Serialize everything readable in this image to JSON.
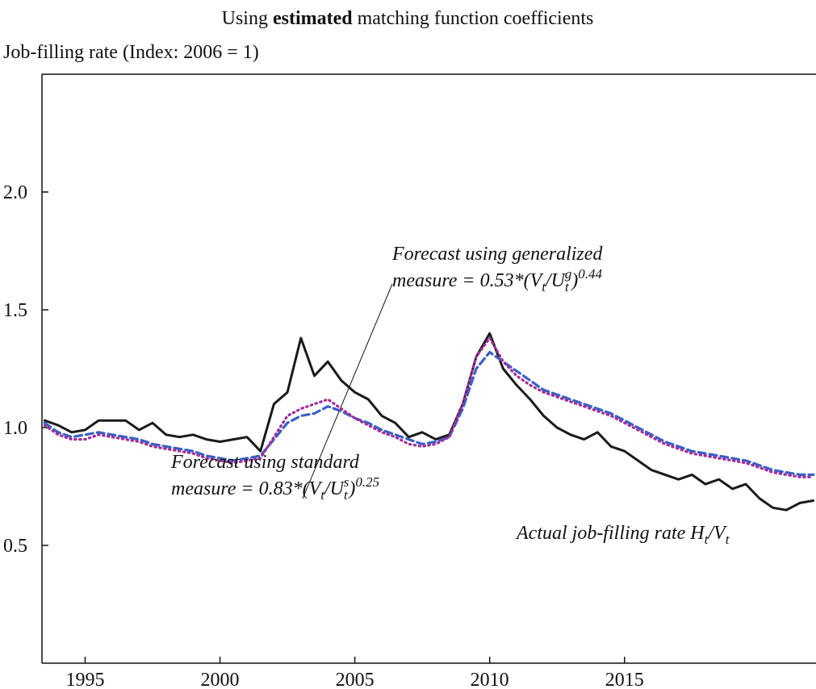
{
  "chart_data": {
    "type": "line",
    "title": [
      {
        "text": "Using "
      },
      {
        "text": "estimated",
        "bold": true
      },
      {
        "text": " matching function coefficients"
      }
    ],
    "y_label": "Job-filling rate (Index: 2006 = 1)",
    "x": [
      1993.5,
      1994,
      1994.5,
      1995,
      1995.5,
      1996,
      1996.5,
      1997,
      1997.5,
      1998,
      1998.5,
      1999,
      1999.5,
      2000,
      2000.5,
      2001,
      2001.5,
      2002,
      2002.5,
      2003,
      2003.5,
      2004,
      2004.5,
      2005,
      2005.5,
      2006,
      2006.5,
      2007,
      2007.5,
      2008,
      2008.5,
      2009,
      2009.5,
      2010,
      2010.5,
      2011,
      2011.5,
      2012,
      2012.5,
      2013,
      2013.5,
      2014,
      2014.5,
      2015,
      2015.5,
      2016,
      2016.5,
      2017,
      2017.5,
      2018,
      2018.5,
      2019,
      2019.5,
      2020,
      2020.5,
      2021,
      2021.5,
      2022
    ],
    "series": [
      {
        "color": "#1a1a1a",
        "dash": "solid",
        "values": [
          1.03,
          1.01,
          0.98,
          0.99,
          1.03,
          1.03,
          1.03,
          0.99,
          1.02,
          0.97,
          0.96,
          0.97,
          0.95,
          0.94,
          0.95,
          0.96,
          0.9,
          1.1,
          1.15,
          1.38,
          1.22,
          1.28,
          1.2,
          1.15,
          1.12,
          1.05,
          1.02,
          0.96,
          0.98,
          0.95,
          0.97,
          1.1,
          1.3,
          1.4,
          1.25,
          1.18,
          1.12,
          1.05,
          1.0,
          0.97,
          0.95,
          0.98,
          0.92,
          0.9,
          0.86,
          0.82,
          0.8,
          0.78,
          0.8,
          0.76,
          0.78,
          0.74,
          0.76,
          0.7,
          0.66,
          0.65,
          0.68,
          0.69
        ]
      },
      {
        "color": "#3b5fc4",
        "dash": "dashed",
        "values": [
          1.02,
          0.98,
          0.96,
          0.97,
          0.98,
          0.97,
          0.96,
          0.95,
          0.93,
          0.92,
          0.91,
          0.9,
          0.88,
          0.87,
          0.86,
          0.87,
          0.88,
          0.95,
          1.02,
          1.05,
          1.06,
          1.09,
          1.07,
          1.04,
          1.02,
          0.99,
          0.97,
          0.95,
          0.93,
          0.94,
          0.96,
          1.08,
          1.25,
          1.32,
          1.28,
          1.24,
          1.2,
          1.16,
          1.14,
          1.12,
          1.1,
          1.08,
          1.06,
          1.03,
          1.0,
          0.97,
          0.94,
          0.92,
          0.9,
          0.89,
          0.88,
          0.87,
          0.86,
          0.84,
          0.82,
          0.81,
          0.8,
          0.8
        ]
      },
      {
        "color": "#a0309a",
        "dash": "dotted",
        "values": [
          1.01,
          0.97,
          0.95,
          0.95,
          0.97,
          0.96,
          0.95,
          0.94,
          0.92,
          0.91,
          0.9,
          0.89,
          0.87,
          0.86,
          0.85,
          0.86,
          0.87,
          0.96,
          1.05,
          1.08,
          1.1,
          1.12,
          1.08,
          1.04,
          1.01,
          0.98,
          0.96,
          0.93,
          0.92,
          0.93,
          0.96,
          1.1,
          1.3,
          1.38,
          1.28,
          1.22,
          1.18,
          1.15,
          1.13,
          1.11,
          1.09,
          1.07,
          1.05,
          1.02,
          0.99,
          0.96,
          0.93,
          0.91,
          0.89,
          0.88,
          0.87,
          0.86,
          0.85,
          0.83,
          0.81,
          0.8,
          0.79,
          0.79
        ]
      }
    ],
    "xlim": [
      1993.4,
      2022.1
    ],
    "xticks": [
      1995,
      2000,
      2005,
      2010,
      2015
    ],
    "ylim": [
      0,
      2.5
    ],
    "yticks": [
      {
        "value": 0.5,
        "label": "0.5"
      },
      {
        "value": 1,
        "label": "1.0"
      },
      {
        "value": 1.5,
        "label": "1.5"
      },
      {
        "value": 2,
        "label": "2.0"
      }
    ],
    "annotations": [
      {
        "lines": [
          [
            {
              "text": "Forecast using generalized"
            }
          ],
          [
            {
              "text": "measure = 0.53*(V"
            },
            {
              "text": "t",
              "shift": "sub"
            },
            {
              "text": "/U"
            },
            {
              "text": "t",
              "shift": "sub"
            },
            {
              "text": "g",
              "shift": "sup"
            },
            {
              "text": ")"
            },
            {
              "text": "0.44",
              "shift": "sup"
            }
          ]
        ]
      },
      {
        "lines": [
          [
            {
              "text": "Forecast using standard"
            }
          ],
          [
            {
              "text": "measure = 0.83*(V"
            },
            {
              "text": "t",
              "shift": "sub"
            },
            {
              "text": "/U"
            },
            {
              "text": "t",
              "shift": "sub"
            },
            {
              "text": "s",
              "shift": "sup"
            },
            {
              "text": ")"
            },
            {
              "text": "0.25",
              "shift": "sup"
            }
          ]
        ]
      },
      {
        "lines": [
          [
            {
              "text": "Actual job-filling rate H"
            },
            {
              "text": "t",
              "shift": "sub"
            },
            {
              "text": "/V"
            },
            {
              "text": "t",
              "shift": "sub"
            }
          ]
        ]
      }
    ]
  }
}
